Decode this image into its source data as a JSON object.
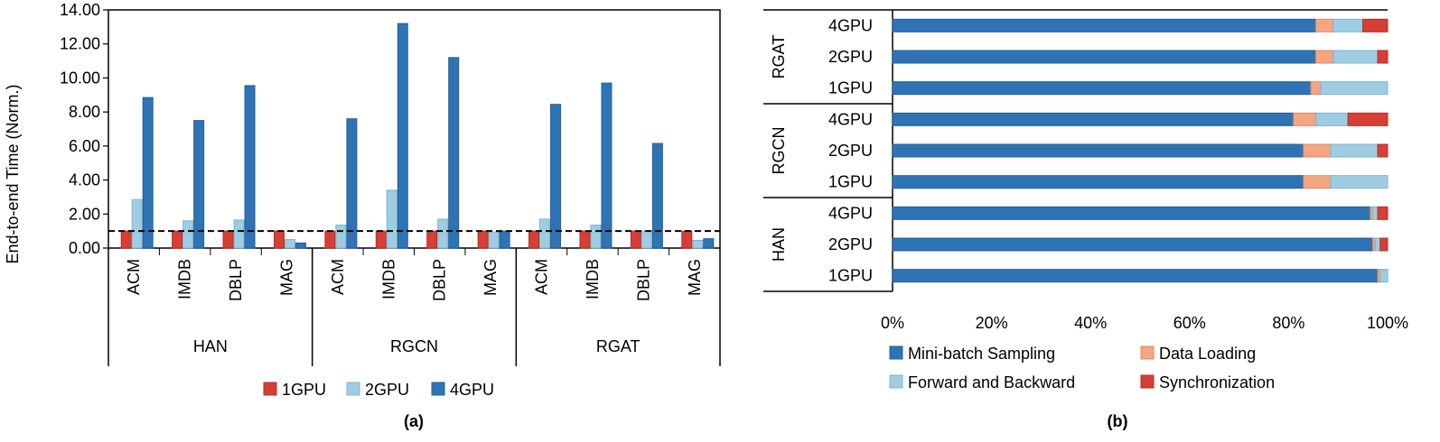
{
  "colors": {
    "gpu1": "#d63f35",
    "gpu2": "#9ecde3",
    "gpu4": "#2e74b5",
    "sampling": "#2e74b5",
    "loading": "#f4a582",
    "forward": "#9ecde3",
    "sync": "#d63f35"
  },
  "chart_data": [
    {
      "type": "bar",
      "caption": "(a)",
      "ylabel": "End-to-end Time (Norm.)",
      "ylim": [
        0,
        14
      ],
      "yticks": [
        "0.00",
        "2.00",
        "4.00",
        "6.00",
        "8.00",
        "10.00",
        "12.00",
        "14.00"
      ],
      "reference_line": 1.0,
      "groups": [
        {
          "name": "HAN",
          "categories": [
            "ACM",
            "IMDB",
            "DBLP",
            "MAG"
          ]
        },
        {
          "name": "RGCN",
          "categories": [
            "ACM",
            "IMDB",
            "DBLP",
            "MAG"
          ]
        },
        {
          "name": "RGAT",
          "categories": [
            "ACM",
            "IMDB",
            "DBLP",
            "MAG"
          ]
        }
      ],
      "series": [
        {
          "name": "1GPU",
          "values": [
            1.0,
            1.0,
            1.0,
            1.0,
            1.0,
            1.0,
            1.0,
            1.0,
            1.0,
            1.0,
            1.0,
            1.0
          ]
        },
        {
          "name": "2GPU",
          "values": [
            2.85,
            1.6,
            1.65,
            0.5,
            1.35,
            3.4,
            1.7,
            0.95,
            1.7,
            1.35,
            1.0,
            0.45
          ]
        },
        {
          "name": "4GPU",
          "values": [
            8.85,
            7.5,
            9.55,
            0.3,
            7.6,
            13.2,
            11.2,
            1.0,
            8.45,
            9.7,
            6.15,
            0.55
          ]
        }
      ]
    },
    {
      "type": "bar",
      "orientation": "horizontal",
      "stacked": true,
      "caption": "(b)",
      "xlim": [
        0,
        100
      ],
      "xticks": [
        "0%",
        "20%",
        "40%",
        "60%",
        "80%",
        "100%"
      ],
      "groups": [
        {
          "name": "RGAT",
          "rows": [
            "4GPU",
            "2GPU",
            "1GPU"
          ]
        },
        {
          "name": "RGCN",
          "rows": [
            "4GPU",
            "2GPU",
            "1GPU"
          ]
        },
        {
          "name": "HAN",
          "rows": [
            "4GPU",
            "2GPU",
            "1GPU"
          ]
        }
      ],
      "series": [
        {
          "name": "Mini-batch Sampling",
          "values": [
            85.5,
            85.5,
            84.5,
            81.0,
            83.0,
            83.0,
            96.5,
            97.0,
            98.0
          ]
        },
        {
          "name": "Data Loading",
          "values": [
            3.5,
            3.5,
            2.0,
            4.5,
            5.5,
            5.5,
            0.5,
            0.5,
            0.5
          ]
        },
        {
          "name": "Forward and Backward",
          "values": [
            6.0,
            9.0,
            13.5,
            6.5,
            9.5,
            11.5,
            1.0,
            1.0,
            1.5
          ]
        },
        {
          "name": "Synchronization",
          "values": [
            5.0,
            2.0,
            0.0,
            8.0,
            2.0,
            0.0,
            2.0,
            1.5,
            0.0
          ]
        }
      ]
    }
  ]
}
